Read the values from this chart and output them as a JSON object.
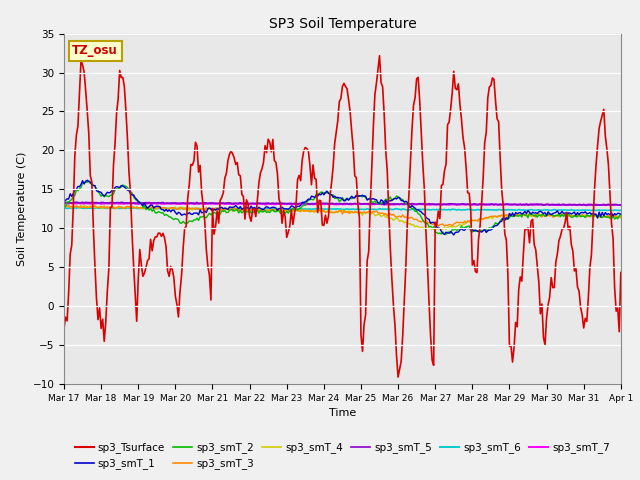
{
  "title": "SP3 Soil Temperature",
  "xlabel": "Time",
  "ylabel": "Soil Temperature (C)",
  "ylim": [
    -10,
    35
  ],
  "annotation_text": "TZ_osu",
  "annotation_bg": "#ffffcc",
  "annotation_border": "#b8a000",
  "fig_bg": "#f0f0f0",
  "plot_bg": "#e8e8e8",
  "grid_color": "#ffffff",
  "series": {
    "sp3_Tsurface": {
      "color": "#dd0000",
      "lw": 1.2
    },
    "sp3_smT_1": {
      "color": "#0000cc",
      "lw": 1.0
    },
    "sp3_smT_2": {
      "color": "#00bb00",
      "lw": 1.0
    },
    "sp3_smT_3": {
      "color": "#ff8800",
      "lw": 1.0
    },
    "sp3_smT_4": {
      "color": "#cccc00",
      "lw": 1.0
    },
    "sp3_smT_5": {
      "color": "#8800cc",
      "lw": 1.2
    },
    "sp3_smT_6": {
      "color": "#00cccc",
      "lw": 1.2
    },
    "sp3_smT_7": {
      "color": "#ff00ff",
      "lw": 1.4
    }
  },
  "xtick_labels": [
    "Mar 17",
    "Mar 18",
    "Mar 19",
    "Mar 20",
    "Mar 21",
    "Mar 22",
    "Mar 23",
    "Mar 24",
    "Mar 25",
    "Mar 26",
    "Mar 27",
    "Mar 28",
    "Mar 29",
    "Mar 30",
    "Mar 31",
    "Apr 1"
  ],
  "xtick_positions": [
    0,
    24,
    48,
    72,
    96,
    120,
    144,
    168,
    192,
    216,
    240,
    264,
    288,
    312,
    336,
    360
  ],
  "yticks": [
    -10,
    -5,
    0,
    5,
    10,
    15,
    20,
    25,
    30,
    35
  ]
}
